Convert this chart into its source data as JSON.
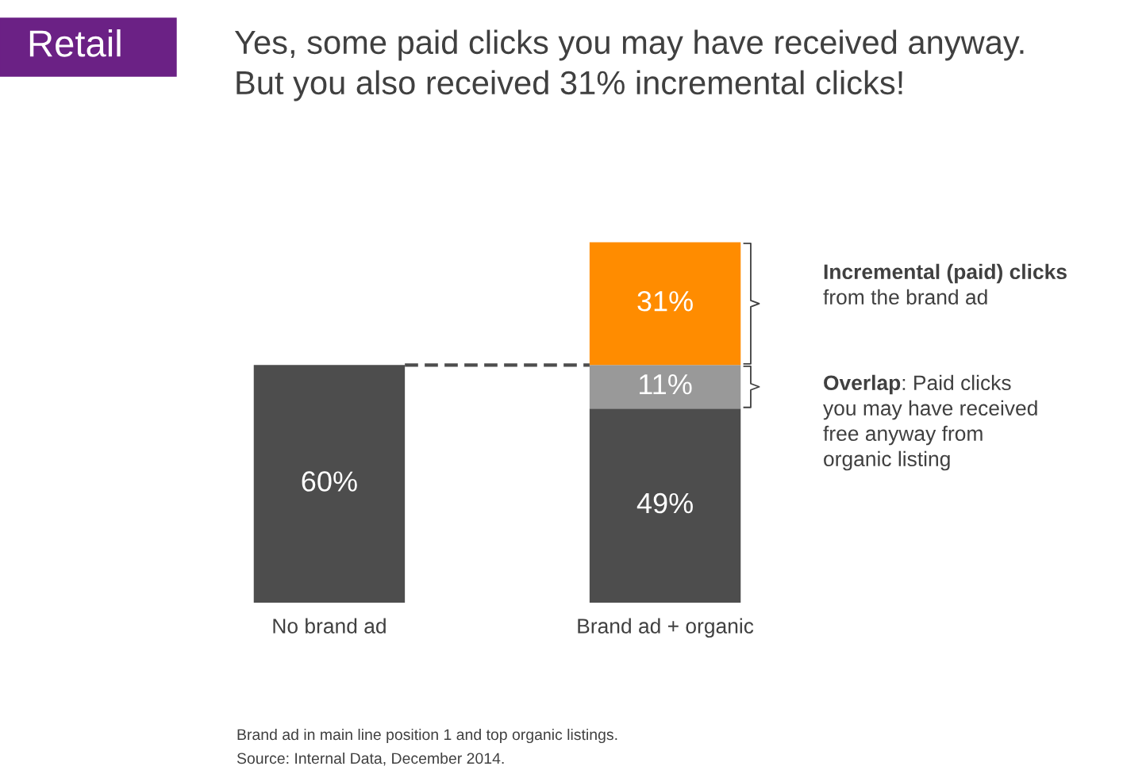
{
  "chart_data": {
    "type": "bar",
    "stacked": true,
    "title": "Yes, some paid clicks you may have received anyway.",
    "subtitle": "But you also received 31% incremental clicks!",
    "categories": [
      "No brand ad",
      "Brand ad + organic"
    ],
    "series": [
      {
        "color": "#4d4d4d",
        "values": [
          60,
          49
        ],
        "value_labels": [
          "60%",
          "49%"
        ]
      },
      {
        "color": "#999999",
        "values": [
          null,
          11
        ],
        "value_labels": [
          null,
          "11%"
        ]
      },
      {
        "color": "#ff8c00",
        "values": [
          null,
          31
        ],
        "value_labels": [
          null,
          "31%"
        ]
      }
    ],
    "ref_lines": [
      {
        "axis": "y",
        "value": 60,
        "color": "#4d4d4d",
        "line_style": "dashed"
      }
    ],
    "annotations": [
      "Retail",
      "Incremental (paid) clicks",
      "from the brand ad",
      "Overlap",
      ": Paid clicks\nyou may have received\nfree anyway from\norganic listing",
      "Brand ad in main line position 1 and top organic listings.",
      "Source: Internal Data, December 2014."
    ],
    "grid": false
  }
}
